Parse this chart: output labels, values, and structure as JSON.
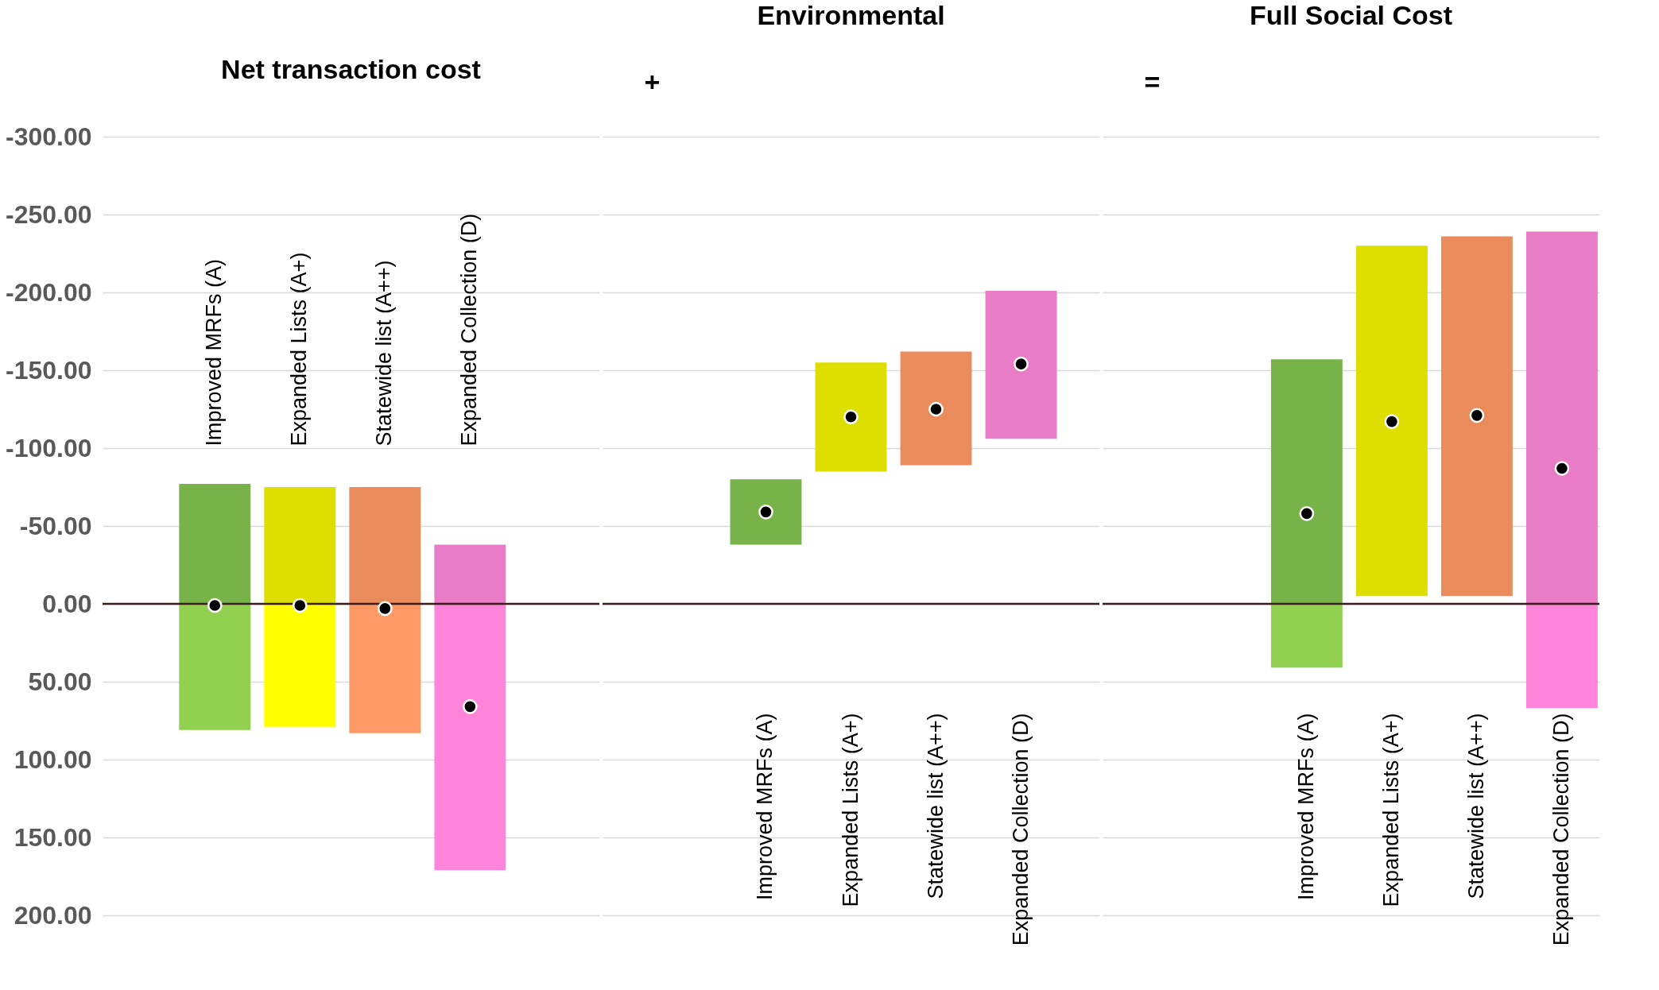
{
  "chart_data": [
    {
      "type": "bar",
      "title": "Net transaction cost",
      "categories": [
        "Improved MRFs (A)",
        "Expanded Lists (A+)",
        "Statewide list (A++)",
        "Expanded Collection (D)"
      ],
      "ylim": [
        200,
        -300
      ],
      "yticks": [
        {
          "value": -300,
          "label": "-300.00"
        },
        {
          "value": -250,
          "label": "-250.00"
        },
        {
          "value": -200,
          "label": "-200.00"
        },
        {
          "value": -150,
          "label": "-150.00"
        },
        {
          "value": -100,
          "label": "-100.00"
        },
        {
          "value": -50,
          "label": "-50.00"
        },
        {
          "value": 0,
          "label": "0.00"
        },
        {
          "value": 50,
          "label": "50.00"
        },
        {
          "value": 100,
          "label": "100.00"
        },
        {
          "value": 150,
          "label": "150.00"
        },
        {
          "value": 200,
          "label": "200.00"
        }
      ],
      "grid": "y",
      "marker": "circle",
      "ref_lines": [
        {
          "axis": "y",
          "value": 0,
          "color": "#3a1c1c"
        }
      ],
      "series": [
        {
          "colors": [
            "#77b349",
            "#dede00",
            "#e98b5a",
            "#e97cc6"
          ],
          "base": [
            0,
            0,
            0,
            0
          ],
          "values": [
            -77,
            -75,
            -75,
            -38
          ]
        },
        {
          "colors": [
            "#92d050",
            "#ffff00",
            "#ff9966",
            "#ff85db"
          ],
          "base": [
            0,
            0,
            0,
            0
          ],
          "values": [
            81,
            79,
            83,
            171
          ]
        },
        {
          "type": "scatter",
          "color": "#000000",
          "values": [
            1,
            1,
            3,
            66
          ]
        }
      ]
    },
    {
      "type": "bar",
      "title": "Environmental",
      "categories": [
        "Improved MRFs (A)",
        "Expanded Lists (A+)",
        "Statewide list (A++)",
        "Expanded Collection (D)"
      ],
      "ylim": [
        200,
        -300
      ],
      "yticks": [
        -300,
        -250,
        -200,
        -150,
        -100,
        -50,
        0,
        50,
        100,
        150,
        200
      ],
      "grid": "y",
      "marker": "circle",
      "tick_labels": "x",
      "annotations": [
        "+"
      ],
      "ref_lines": [
        {
          "axis": "y",
          "value": 0,
          "color": "#3a1c1c"
        }
      ],
      "series": [
        {
          "colors": [
            "#77b349",
            "#dede00",
            "#e98b5a",
            "#e97cc6"
          ],
          "base": [
            -38,
            -85,
            -89,
            -106
          ],
          "values": [
            -42,
            -70,
            -73,
            -95
          ]
        },
        {
          "type": "scatter",
          "color": "#000000",
          "values": [
            -59,
            -120,
            -125,
            -154
          ]
        }
      ]
    },
    {
      "type": "bar",
      "title": "Full Social Cost",
      "categories": [
        "Improved MRFs (A)",
        "Expanded Lists (A+)",
        "Statewide list (A++)",
        "Expanded Collection (D)"
      ],
      "ylim": [
        200,
        -300
      ],
      "yticks": [
        -300,
        -250,
        -200,
        -150,
        -100,
        -50,
        0,
        50,
        100,
        150,
        200
      ],
      "grid": "y",
      "marker": "circle",
      "tick_labels": "x",
      "annotations": [
        "="
      ],
      "ref_lines": [
        {
          "axis": "y",
          "value": 0,
          "color": "#3a1c1c"
        }
      ],
      "series": [
        {
          "colors": [
            "#77b349",
            "#dede00",
            "#e98b5a",
            "#e97cc6"
          ],
          "base": [
            0,
            -5,
            -5,
            0
          ],
          "values": [
            -157,
            -225,
            -231,
            -239
          ]
        },
        {
          "colors": [
            "#92d050",
            null,
            null,
            "#ff85db"
          ],
          "base": [
            0,
            null,
            null,
            0
          ],
          "values": [
            41,
            null,
            null,
            67
          ]
        },
        {
          "type": "scatter",
          "color": "#000000",
          "values": [
            -58,
            -117,
            -121,
            -87
          ]
        }
      ]
    }
  ]
}
